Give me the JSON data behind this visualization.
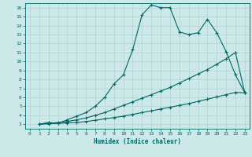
{
  "xlabel": "Humidex (Indice chaleur)",
  "bg_color": "#cce8e8",
  "line_color": "#006666",
  "xlim": [
    -0.5,
    23.5
  ],
  "ylim": [
    2.5,
    16.5
  ],
  "xticks": [
    0,
    1,
    2,
    3,
    4,
    5,
    6,
    7,
    8,
    9,
    10,
    11,
    12,
    13,
    14,
    15,
    16,
    17,
    18,
    19,
    20,
    21,
    22,
    23
  ],
  "yticks": [
    3,
    4,
    5,
    6,
    7,
    8,
    9,
    10,
    11,
    12,
    13,
    14,
    15,
    16
  ],
  "line1_x": [
    1,
    2,
    3,
    4,
    5,
    6,
    7,
    8,
    9,
    10,
    11,
    12,
    13,
    14,
    15,
    16,
    17,
    18,
    19,
    20,
    21,
    22,
    23
  ],
  "line1_y": [
    3,
    3.2,
    3.1,
    3.5,
    3.9,
    4.3,
    5.0,
    6.0,
    7.5,
    8.5,
    11.3,
    15.2,
    16.3,
    16.0,
    16.0,
    13.3,
    13.0,
    13.2,
    14.7,
    13.2,
    11.1,
    8.5,
    6.5
  ],
  "line2_x": [
    1,
    2,
    3,
    4,
    5,
    6,
    7,
    8,
    9,
    10,
    11,
    12,
    13,
    14,
    15,
    16,
    17,
    18,
    19,
    20,
    21,
    22,
    23
  ],
  "line2_y": [
    3,
    3.1,
    3.2,
    3.3,
    3.5,
    3.7,
    4.0,
    4.3,
    4.7,
    5.1,
    5.5,
    5.9,
    6.3,
    6.7,
    7.1,
    7.6,
    8.1,
    8.6,
    9.1,
    9.7,
    10.3,
    11.0,
    6.5
  ],
  "line3_x": [
    1,
    2,
    3,
    4,
    5,
    6,
    7,
    8,
    9,
    10,
    11,
    12,
    13,
    14,
    15,
    16,
    17,
    18,
    19,
    20,
    21,
    22,
    23
  ],
  "line3_y": [
    3,
    3.05,
    3.1,
    3.15,
    3.2,
    3.3,
    3.45,
    3.6,
    3.75,
    3.9,
    4.1,
    4.3,
    4.5,
    4.7,
    4.9,
    5.1,
    5.3,
    5.55,
    5.8,
    6.05,
    6.3,
    6.55,
    6.5
  ]
}
